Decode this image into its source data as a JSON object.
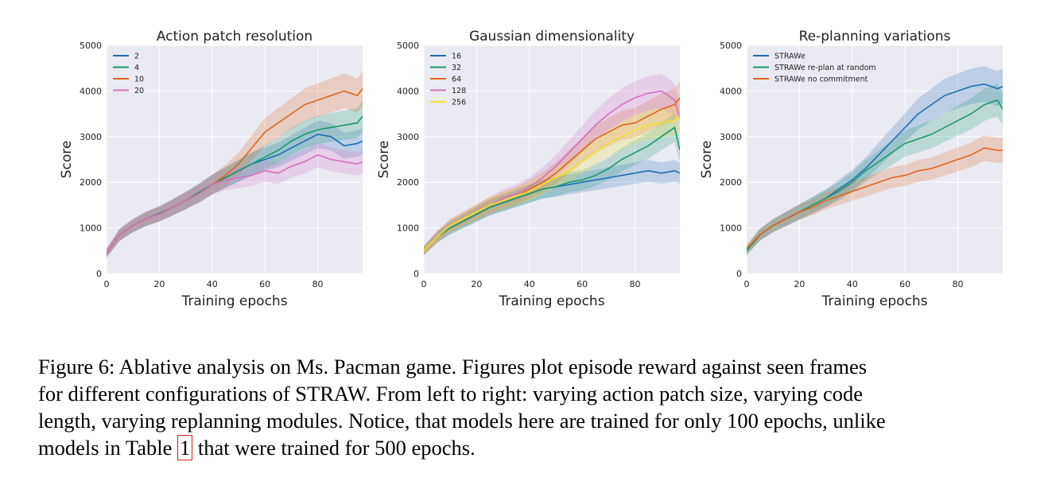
{
  "caption": {
    "line1": "Figure 6:  Ablative analysis on Ms. Pacman game. Figures plot episode reward against seen frames",
    "line2": "for different configurations of STRAW. From left to right: varying action patch size, varying code",
    "line3": "length, varying replanning modules. Notice, that models here are trained for only 100 epochs, unlike",
    "line4_pre": "models in Table ",
    "line4_ref": "1",
    "line4_post": " that were trained for 500 epochs."
  },
  "chart_data": [
    {
      "type": "line",
      "title": "Action patch resolution",
      "xlabel": "Training epochs",
      "ylabel": "Score",
      "xlim": [
        0,
        97
      ],
      "ylim": [
        0,
        5000
      ],
      "xticks": [
        0,
        20,
        40,
        60,
        80
      ],
      "yticks": [
        0,
        1000,
        2000,
        3000,
        4000,
        5000
      ],
      "grid": true,
      "legend_position": "top-left",
      "x": [
        0,
        5,
        10,
        15,
        20,
        25,
        30,
        35,
        40,
        45,
        50,
        55,
        60,
        65,
        70,
        75,
        80,
        85,
        90,
        95,
        97
      ],
      "series": [
        {
          "name": "2",
          "color": "#1f6fb4",
          "values": [
            450,
            850,
            1050,
            1200,
            1300,
            1450,
            1600,
            1750,
            1950,
            2100,
            2250,
            2400,
            2500,
            2600,
            2750,
            2900,
            3050,
            3000,
            2800,
            2850,
            2900
          ]
        },
        {
          "name": "4",
          "color": "#1a9a6c",
          "values": [
            450,
            850,
            1050,
            1200,
            1320,
            1450,
            1600,
            1780,
            1950,
            2100,
            2250,
            2400,
            2550,
            2700,
            2900,
            3050,
            3150,
            3200,
            3250,
            3300,
            3450
          ]
        },
        {
          "name": "10",
          "color": "#e0661b",
          "values": [
            450,
            850,
            1050,
            1200,
            1300,
            1450,
            1600,
            1750,
            1950,
            2150,
            2400,
            2750,
            3100,
            3300,
            3500,
            3700,
            3800,
            3900,
            4000,
            3900,
            4050
          ]
        },
        {
          "name": "20",
          "color": "#d66fc0",
          "values": [
            450,
            850,
            1050,
            1200,
            1300,
            1450,
            1600,
            1750,
            1950,
            2050,
            2100,
            2150,
            2250,
            2200,
            2350,
            2450,
            2600,
            2500,
            2450,
            2400,
            2450
          ]
        }
      ]
    },
    {
      "type": "line",
      "title": "Gaussian dimensionality",
      "xlabel": "Training epochs",
      "ylabel": "Score",
      "xlim": [
        0,
        97
      ],
      "ylim": [
        0,
        5000
      ],
      "xticks": [
        0,
        20,
        40,
        60,
        80
      ],
      "yticks": [
        0,
        1000,
        2000,
        3000,
        4000,
        5000
      ],
      "grid": true,
      "legend_position": "top-left",
      "x": [
        0,
        5,
        10,
        15,
        20,
        25,
        30,
        35,
        40,
        45,
        50,
        55,
        60,
        65,
        70,
        75,
        80,
        85,
        90,
        95,
        97
      ],
      "series": [
        {
          "name": "16",
          "color": "#1f6fb4",
          "values": [
            500,
            800,
            1000,
            1150,
            1300,
            1450,
            1550,
            1650,
            1750,
            1850,
            1900,
            1950,
            2000,
            2050,
            2100,
            2150,
            2200,
            2250,
            2200,
            2250,
            2200
          ]
        },
        {
          "name": "32",
          "color": "#1a9a6c",
          "values": [
            500,
            800,
            1000,
            1150,
            1300,
            1450,
            1550,
            1650,
            1750,
            1850,
            1900,
            2000,
            2050,
            2150,
            2300,
            2500,
            2650,
            2800,
            3000,
            3200,
            2700
          ]
        },
        {
          "name": "64",
          "color": "#e0661b",
          "values": [
            500,
            800,
            1050,
            1200,
            1350,
            1500,
            1600,
            1700,
            1850,
            2000,
            2200,
            2450,
            2700,
            2950,
            3100,
            3250,
            3300,
            3450,
            3600,
            3700,
            3850
          ]
        },
        {
          "name": "128",
          "color": "#d66fc0",
          "values": [
            500,
            800,
            1050,
            1200,
            1350,
            1500,
            1650,
            1750,
            1900,
            2100,
            2350,
            2650,
            2950,
            3250,
            3500,
            3700,
            3850,
            3950,
            4000,
            3800,
            3400
          ]
        },
        {
          "name": "256",
          "color": "#f2e22c",
          "values": [
            500,
            800,
            1050,
            1200,
            1350,
            1500,
            1600,
            1700,
            1800,
            1950,
            2100,
            2250,
            2450,
            2650,
            2850,
            3000,
            3150,
            3250,
            3300,
            3350,
            3450
          ]
        }
      ]
    },
    {
      "type": "line",
      "title": "Re-planning variations",
      "xlabel": "Training epochs",
      "ylabel": "Score",
      "xlim": [
        0,
        97
      ],
      "ylim": [
        0,
        5000
      ],
      "xticks": [
        0,
        20,
        40,
        60,
        80
      ],
      "yticks": [
        0,
        1000,
        2000,
        3000,
        4000,
        5000
      ],
      "grid": true,
      "legend_position": "top-left",
      "x": [
        0,
        5,
        10,
        15,
        20,
        25,
        30,
        35,
        40,
        45,
        50,
        55,
        60,
        65,
        70,
        75,
        80,
        85,
        90,
        95,
        97
      ],
      "series": [
        {
          "name": "STRAWe",
          "color": "#1f6fb4",
          "values": [
            500,
            850,
            1050,
            1200,
            1350,
            1500,
            1650,
            1850,
            2050,
            2300,
            2600,
            2900,
            3200,
            3500,
            3700,
            3900,
            4000,
            4100,
            4150,
            4050,
            4100
          ]
        },
        {
          "name": "STRAWe re-plan at random",
          "color": "#1a9a6c",
          "values": [
            500,
            850,
            1050,
            1200,
            1350,
            1500,
            1650,
            1800,
            2000,
            2250,
            2450,
            2650,
            2850,
            2950,
            3050,
            3200,
            3350,
            3500,
            3700,
            3800,
            3600
          ]
        },
        {
          "name": "STRAWe no commitment",
          "color": "#e0661b",
          "values": [
            550,
            850,
            1050,
            1200,
            1350,
            1450,
            1600,
            1700,
            1800,
            1900,
            2000,
            2100,
            2150,
            2250,
            2300,
            2400,
            2500,
            2600,
            2750,
            2700,
            2700
          ]
        }
      ]
    }
  ]
}
